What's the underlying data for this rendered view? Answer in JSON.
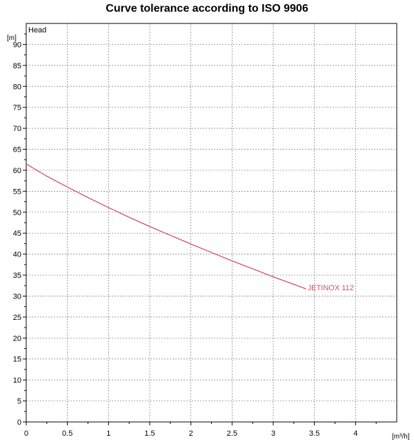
{
  "chart_data": {
    "type": "line",
    "title": "Curve tolerance according to ISO 9906",
    "ylabel": "Head",
    "yunit": "[m]",
    "xunit": "[m³/h]",
    "xlim": [
      0,
      4.5
    ],
    "ylim": [
      0,
      95
    ],
    "xticks": [
      0,
      0.5,
      1,
      1.5,
      2,
      2.5,
      3,
      3.5,
      4
    ],
    "yticks": [
      0,
      5,
      10,
      15,
      20,
      25,
      30,
      35,
      40,
      45,
      50,
      55,
      60,
      65,
      70,
      75,
      80,
      85,
      90
    ],
    "xtick_labels": [
      "0",
      "0.5",
      "1",
      "1.5",
      "2",
      "2.5",
      "3",
      "3.5",
      "4"
    ],
    "ytick_labels": [
      "0",
      "5",
      "10",
      "15",
      "20",
      "25",
      "30",
      "35",
      "40",
      "45",
      "50",
      "55",
      "60",
      "65",
      "70",
      "75",
      "80",
      "85",
      "90"
    ],
    "grid": true,
    "series": [
      {
        "name": "JETINOX 112",
        "color": "#cc5566",
        "x": [
          0,
          0.25,
          0.5,
          0.75,
          1,
          1.25,
          1.5,
          1.75,
          2,
          2.25,
          2.5,
          2.75,
          3,
          3.25,
          3.4
        ],
        "y": [
          61.5,
          58.6,
          56.0,
          53.5,
          51.1,
          48.8,
          46.6,
          44.5,
          42.4,
          40.4,
          38.4,
          36.5,
          34.6,
          32.8,
          31.7
        ]
      }
    ]
  }
}
